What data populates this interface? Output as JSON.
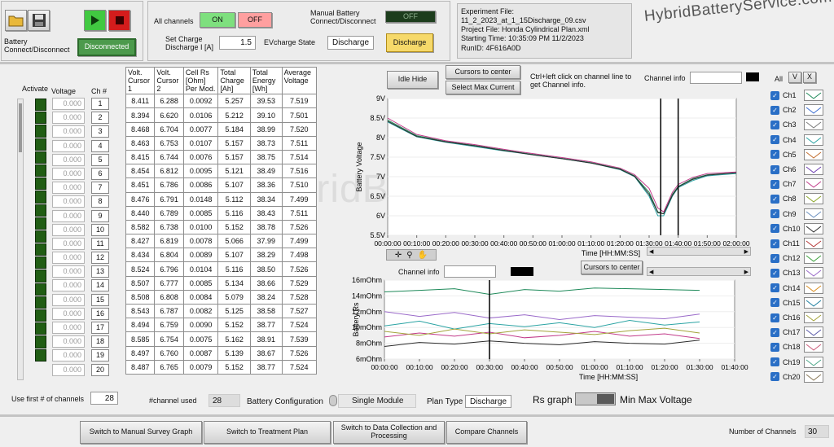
{
  "toolbar": {
    "open_icon": "folder-icon",
    "save_icon": "floppy-icon",
    "battery_connect_label": "Battery Connect/Disconnect",
    "disconnected_label": "Disconnected",
    "all_channels_label": "All channels",
    "on_label": "ON",
    "off_label": "OFF",
    "set_charge_label": "Set Charge Discharge I [A]",
    "set_charge_value": "1.5",
    "evcharge_label": "EVcharge State",
    "evcharge_value": "Discharge",
    "manual_battery_label": "Manual Battery Connect/Disconnect",
    "manual_off_label": "OFF",
    "discharge_button": "Discharge"
  },
  "experiment": {
    "file_label": "Experiment File:",
    "file_name": "11_2_2023_at_1_15Discharge_09.csv",
    "project": "Project File: Honda Cylindrical Plan.xml",
    "start": "Starting Time: 10:35:09 PM 11/2/2023",
    "run_id": "RunID: 4F616A0D"
  },
  "brand": "HybridBatteryService.com",
  "controls": {
    "idle_hide": "Idle Hide",
    "cursors_center": "Cursors to center",
    "select_max_current": "Select  Max Current",
    "hint": "Ctrl+left click on channel line to get Channel info.",
    "channel_info_label": "Channel info",
    "channel_info2_label": "Channel info",
    "cursors_center2": "Cursors to center",
    "all_label": "All",
    "v_label": "V",
    "x_label": "X"
  },
  "left_headers": {
    "activate": "Activate",
    "voltage": "Voltage",
    "ch": "Ch #"
  },
  "table": {
    "headers": [
      "Volt. Cursor 1",
      "Volt. Cursor 2",
      "Cell Rs [Ohm] Per Mod.",
      "Total Charge [Ah]",
      "Total Energy [Wh]",
      "Average Voltage"
    ],
    "rows": [
      {
        "ch": "1",
        "v": "0.000",
        "c1": "8.411",
        "c2": "6.288",
        "rs": "0.0092",
        "ah": "5.257",
        "wh": "39.53",
        "avg": "7.519"
      },
      {
        "ch": "2",
        "v": "0.000",
        "c1": "8.394",
        "c2": "6.620",
        "rs": "0.0106",
        "ah": "5.212",
        "wh": "39.10",
        "avg": "7.501"
      },
      {
        "ch": "3",
        "v": "0.000",
        "c1": "8.468",
        "c2": "6.704",
        "rs": "0.0077",
        "ah": "5.184",
        "wh": "38.99",
        "avg": "7.520"
      },
      {
        "ch": "4",
        "v": "0.000",
        "c1": "8.463",
        "c2": "6.753",
        "rs": "0.0107",
        "ah": "5.157",
        "wh": "38.73",
        "avg": "7.511"
      },
      {
        "ch": "5",
        "v": "0.000",
        "c1": "8.415",
        "c2": "6.744",
        "rs": "0.0076",
        "ah": "5.157",
        "wh": "38.75",
        "avg": "7.514"
      },
      {
        "ch": "6",
        "v": "0.000",
        "c1": "8.454",
        "c2": "6.812",
        "rs": "0.0095",
        "ah": "5.121",
        "wh": "38.49",
        "avg": "7.516"
      },
      {
        "ch": "7",
        "v": "0.000",
        "c1": "8.451",
        "c2": "6.786",
        "rs": "0.0086",
        "ah": "5.107",
        "wh": "38.36",
        "avg": "7.510"
      },
      {
        "ch": "8",
        "v": "0.000",
        "c1": "8.476",
        "c2": "6.791",
        "rs": "0.0148",
        "ah": "5.112",
        "wh": "38.34",
        "avg": "7.499"
      },
      {
        "ch": "9",
        "v": "0.000",
        "c1": "8.440",
        "c2": "6.789",
        "rs": "0.0085",
        "ah": "5.116",
        "wh": "38.43",
        "avg": "7.511"
      },
      {
        "ch": "10",
        "v": "0.000",
        "c1": "8.582",
        "c2": "6.738",
        "rs": "0.0100",
        "ah": "5.152",
        "wh": "38.78",
        "avg": "7.526"
      },
      {
        "ch": "11",
        "v": "0.000",
        "c1": "8.427",
        "c2": "6.819",
        "rs": "0.0078",
        "ah": "5.066",
        "wh": "37.99",
        "avg": "7.499"
      },
      {
        "ch": "12",
        "v": "0.000",
        "c1": "8.434",
        "c2": "6.804",
        "rs": "0.0089",
        "ah": "5.107",
        "wh": "38.29",
        "avg": "7.498"
      },
      {
        "ch": "13",
        "v": "0.000",
        "c1": "8.524",
        "c2": "6.796",
        "rs": "0.0104",
        "ah": "5.116",
        "wh": "38.50",
        "avg": "7.526"
      },
      {
        "ch": "14",
        "v": "0.000",
        "c1": "8.507",
        "c2": "6.777",
        "rs": "0.0085",
        "ah": "5.134",
        "wh": "38.66",
        "avg": "7.529"
      },
      {
        "ch": "15",
        "v": "0.000",
        "c1": "8.508",
        "c2": "6.808",
        "rs": "0.0084",
        "ah": "5.079",
        "wh": "38.24",
        "avg": "7.528"
      },
      {
        "ch": "16",
        "v": "0.000",
        "c1": "8.543",
        "c2": "6.787",
        "rs": "0.0082",
        "ah": "5.125",
        "wh": "38.58",
        "avg": "7.527"
      },
      {
        "ch": "17",
        "v": "0.000",
        "c1": "8.494",
        "c2": "6.759",
        "rs": "0.0090",
        "ah": "5.152",
        "wh": "38.77",
        "avg": "7.524"
      },
      {
        "ch": "18",
        "v": "0.000",
        "c1": "8.585",
        "c2": "6.754",
        "rs": "0.0075",
        "ah": "5.162",
        "wh": "38.91",
        "avg": "7.539"
      },
      {
        "ch": "19",
        "v": "0.000",
        "c1": "8.497",
        "c2": "6.760",
        "rs": "0.0087",
        "ah": "5.139",
        "wh": "38.67",
        "avg": "7.526"
      },
      {
        "ch": "20",
        "v": "0.000",
        "c1": "8.487",
        "c2": "6.765",
        "rs": "0.0079",
        "ah": "5.152",
        "wh": "38.77",
        "avg": "7.524"
      }
    ]
  },
  "legend": [
    "Ch1",
    "Ch2",
    "Ch3",
    "Ch4",
    "Ch5",
    "Ch6",
    "Ch7",
    "Ch8",
    "Ch9",
    "Ch10",
    "Ch11",
    "Ch12",
    "Ch13",
    "Ch14",
    "Ch15",
    "Ch16",
    "Ch17",
    "Ch18",
    "Ch19",
    "Ch20"
  ],
  "bottom": {
    "use_first_label": "Use first # of channels",
    "use_first_value": "28",
    "channel_used_label": "#channel used",
    "channel_used_value": "28",
    "battery_config_label": "Battery Configuration",
    "battery_config_value": "Single Module",
    "plan_type_label": "Plan Type",
    "plan_type_value": "Discharge",
    "rs_graph_label": "Rs graph",
    "min_max_label": "Min Max Voltage"
  },
  "footer": {
    "buttons": [
      "Switch to Manual  Survey Graph",
      "Switch to Treatment Plan",
      "Switch to Data Collection and Processing",
      "Compare  Channels"
    ],
    "num_channels_label": "Number of  Channels",
    "num_channels_value": "30"
  },
  "chart_data": [
    {
      "type": "line",
      "title": "",
      "xlabel": "Time [HH:MM:SS]",
      "ylabel": "Battery Voltage",
      "ylim": [
        5.5,
        9
      ],
      "yticks": [
        "9V",
        "8.5V",
        "8V",
        "7.5V",
        "7V",
        "6.5V",
        "6V",
        "5.5V"
      ],
      "xticks": [
        "00:00:00",
        "00:10:00",
        "00:20:00",
        "00:30:00",
        "00:40:00",
        "00:50:00",
        "01:00:00",
        "01:10:00",
        "01:20:00",
        "01:30:00",
        "01:40:00",
        "01:50:00",
        "02:00:00"
      ],
      "x_minutes": [
        0,
        10,
        20,
        30,
        40,
        50,
        60,
        70,
        80,
        85,
        90,
        93,
        95,
        98,
        100,
        105,
        110,
        120
      ],
      "series": [
        {
          "values": [
            8.45,
            8.05,
            7.9,
            7.8,
            7.68,
            7.57,
            7.47,
            7.36,
            7.2,
            7.02,
            6.6,
            6.1,
            6.05,
            6.55,
            6.75,
            6.95,
            7.05,
            7.1
          ]
        },
        {
          "values": [
            8.4,
            8.02,
            7.88,
            7.77,
            7.66,
            7.56,
            7.46,
            7.35,
            7.18,
            7.0,
            6.5,
            6.0,
            6.0,
            6.5,
            6.72,
            6.9,
            7.02,
            7.08
          ]
        },
        {
          "values": [
            8.5,
            8.08,
            7.92,
            7.82,
            7.7,
            7.59,
            7.49,
            7.38,
            7.22,
            7.05,
            6.7,
            6.2,
            6.1,
            6.6,
            6.8,
            6.98,
            7.08,
            7.12
          ]
        },
        {
          "values": [
            8.42,
            8.03,
            7.89,
            7.79,
            7.67,
            7.56,
            7.46,
            7.35,
            7.19,
            7.01,
            6.55,
            6.08,
            6.05,
            6.52,
            6.74,
            6.93,
            7.04,
            7.1
          ]
        }
      ],
      "cursors_minutes": [
        94,
        100
      ]
    },
    {
      "type": "line",
      "title": "",
      "xlabel": "Time [HH:MM:SS]",
      "ylabel": "Battery Rs",
      "ylim": [
        6,
        16
      ],
      "yticks": [
        "16mOhm",
        "14mOhm",
        "12mOhm",
        "10mOhm",
        "8mOhm",
        "6mOhm"
      ],
      "xticks": [
        "00:00:00",
        "00:10:00",
        "00:20:00",
        "00:30:00",
        "00:40:00",
        "00:50:00",
        "01:00:00",
        "01:10:00",
        "01:20:00",
        "01:30:00",
        "01:40:00"
      ],
      "x_minutes": [
        0,
        10,
        20,
        30,
        40,
        50,
        60,
        70,
        80,
        90
      ],
      "series": [
        {
          "values": [
            14.5,
            14.7,
            14.9,
            14.2,
            14.8,
            14.6,
            15.0,
            14.9,
            14.8,
            14.7
          ]
        },
        {
          "values": [
            10.2,
            10.8,
            9.8,
            10.5,
            10.1,
            10.6,
            10.0,
            10.9,
            10.3,
            10.7
          ]
        },
        {
          "values": [
            8.8,
            9.3,
            8.9,
            9.4,
            8.7,
            9.0,
            9.5,
            8.9,
            9.2,
            8.6
          ]
        },
        {
          "values": [
            7.6,
            8.1,
            7.9,
            8.3,
            8.0,
            7.8,
            8.2,
            8.0,
            7.9,
            8.4
          ]
        },
        {
          "values": [
            12.0,
            11.4,
            11.9,
            11.2,
            11.6,
            11.0,
            11.5,
            11.3,
            11.1,
            11.7
          ]
        },
        {
          "values": [
            9.5,
            9.0,
            9.8,
            9.2,
            9.7,
            9.4,
            9.1,
            9.6,
            9.9,
            9.3
          ]
        }
      ]
    }
  ],
  "colors": {
    "accent_green": "#41c941",
    "run_green": "#1a8a1a",
    "stop_red": "#d41c1c",
    "on_button": "#7ee07e",
    "off_button": "#ff9f9f",
    "discharge_button": "#f6d96a",
    "led_green": "#215d14"
  }
}
